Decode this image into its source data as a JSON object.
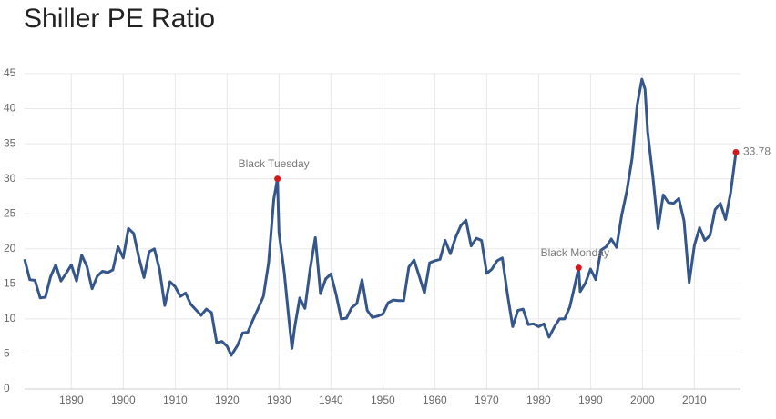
{
  "chart_data": {
    "type": "line",
    "title": "Shiller PE Ratio",
    "series": [
      {
        "name": "Shiller PE Ratio",
        "color": "#34568b",
        "x": [
          1881,
          1882,
          1883,
          1884,
          1885,
          1886,
          1887,
          1888,
          1889,
          1890,
          1891,
          1892,
          1893,
          1894,
          1895,
          1896,
          1897,
          1898,
          1899,
          1900,
          1901,
          1902,
          1903,
          1904,
          1905,
          1906,
          1907,
          1908,
          1909,
          1910,
          1911,
          1912,
          1913,
          1914,
          1915,
          1916,
          1917,
          1918,
          1919,
          1920,
          1920.8,
          1922,
          1923,
          1924,
          1925,
          1926,
          1927,
          1928,
          1929,
          1929.7,
          1930,
          1931,
          1932,
          1932.5,
          1933,
          1934,
          1935,
          1936,
          1937,
          1938,
          1939,
          1940,
          1941,
          1942,
          1943,
          1944,
          1945,
          1946,
          1947,
          1948,
          1949,
          1950,
          1951,
          1952,
          1953,
          1954,
          1955,
          1956,
          1957,
          1958,
          1959,
          1960,
          1961,
          1962,
          1963,
          1964,
          1965,
          1966,
          1967,
          1968,
          1969,
          1970,
          1971,
          1972,
          1973,
          1974,
          1975,
          1976,
          1977,
          1978,
          1979,
          1980,
          1981,
          1982,
          1983,
          1984,
          1985,
          1986,
          1987,
          1987.7,
          1988,
          1989,
          1990,
          1991,
          1992,
          1993,
          1994,
          1995,
          1996,
          1997,
          1998,
          1999,
          1999.9,
          2000.5,
          2001,
          2002,
          2003,
          2004,
          2005,
          2006,
          2007,
          2008,
          2009,
          2010,
          2011,
          2012,
          2013,
          2014,
          2015,
          2016,
          2017,
          2018
        ],
        "values": [
          18.5,
          15.6,
          15.5,
          13.0,
          13.1,
          16.0,
          17.7,
          15.4,
          16.5,
          17.7,
          15.4,
          19.1,
          17.5,
          14.3,
          16.1,
          16.8,
          16.6,
          17.0,
          20.3,
          18.7,
          22.9,
          22.2,
          18.8,
          15.9,
          19.6,
          20.0,
          17.0,
          11.9,
          15.3,
          14.6,
          13.2,
          13.7,
          12.1,
          11.3,
          10.5,
          11.4,
          10.9,
          6.6,
          6.8,
          6.1,
          4.8,
          6.2,
          8.0,
          8.1,
          9.9,
          11.5,
          13.2,
          18.0,
          27.1,
          30.0,
          22.3,
          16.7,
          9.3,
          5.8,
          8.7,
          13.0,
          11.5,
          17.1,
          21.6,
          13.6,
          15.7,
          16.4,
          13.5,
          10.0,
          10.1,
          11.6,
          12.2,
          15.6,
          11.2,
          10.2,
          10.4,
          10.7,
          12.3,
          12.7,
          12.6,
          12.6,
          17.4,
          18.4,
          16.1,
          13.7,
          18.0,
          18.3,
          18.5,
          21.2,
          19.3,
          21.6,
          23.3,
          24.1,
          20.4,
          21.5,
          21.2,
          16.5,
          17.1,
          18.3,
          18.7,
          13.5,
          8.9,
          11.2,
          11.4,
          9.2,
          9.3,
          8.9,
          9.3,
          7.4,
          8.8,
          10.0,
          10.0,
          11.7,
          14.9,
          17.3,
          13.9,
          15.1,
          17.1,
          15.6,
          19.8,
          20.3,
          21.4,
          20.2,
          24.8,
          28.3,
          32.9,
          40.6,
          44.2,
          42.8,
          36.7,
          30.3,
          22.9,
          27.7,
          26.6,
          26.5,
          27.2,
          24.0,
          15.2,
          20.5,
          23.0,
          21.2,
          21.9,
          25.6,
          26.5,
          24.2,
          28.1,
          33.78
        ]
      }
    ],
    "annotations": [
      {
        "label": "Black Tuesday",
        "x": 1929.7,
        "y": 30.0
      },
      {
        "label": "Black Monday",
        "x": 1987.7,
        "y": 17.3
      }
    ],
    "marker_color": "#d7191c",
    "label_last_value": true,
    "xlim": [
      1881,
      2018
    ],
    "xticks": [
      1890,
      1900,
      1910,
      1920,
      1930,
      1940,
      1950,
      1960,
      1970,
      1980,
      1990,
      2000,
      2010
    ],
    "ylim": [
      0,
      45
    ],
    "yticks": [
      0,
      5,
      10,
      15,
      20,
      25,
      30,
      35,
      40,
      45
    ],
    "grid": true
  }
}
